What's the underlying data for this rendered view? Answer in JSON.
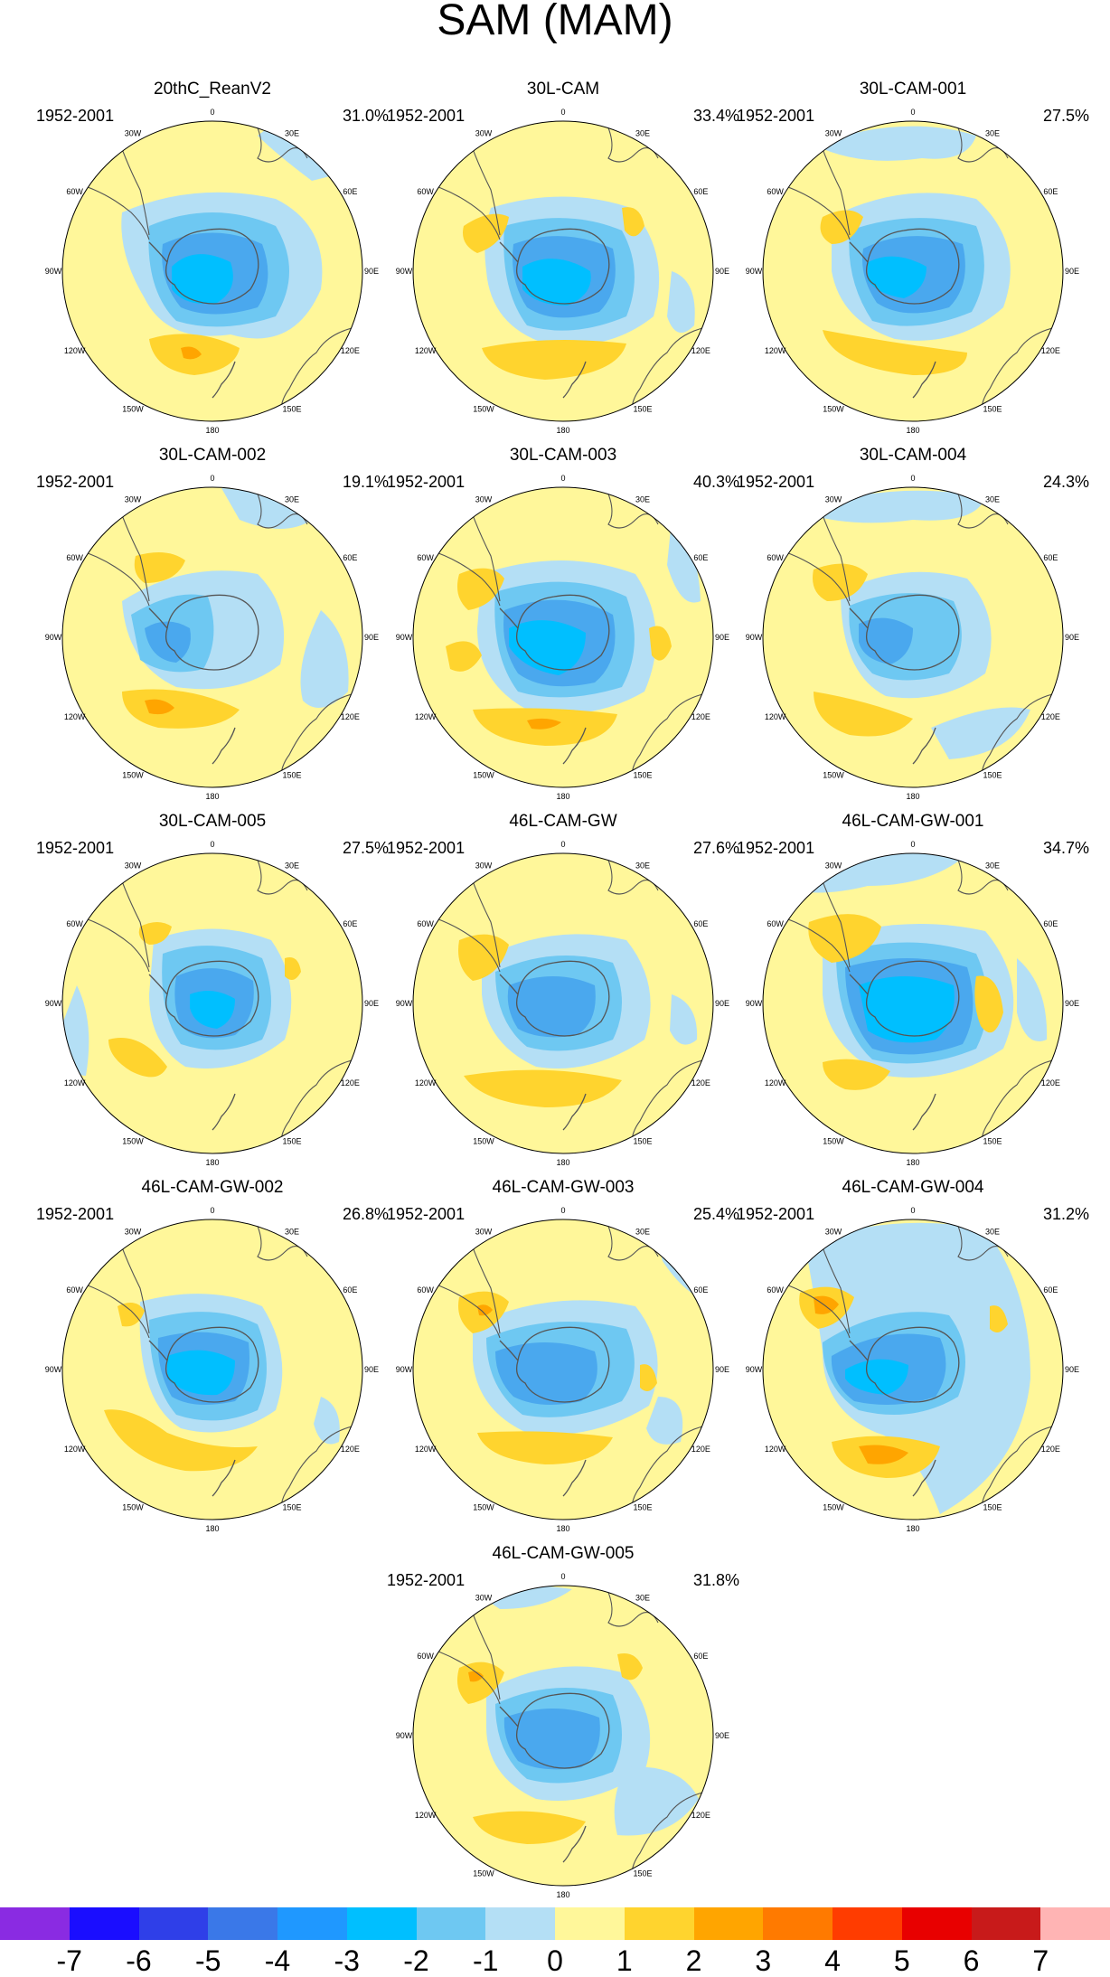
{
  "title": "SAM (MAM)",
  "longitude_labels": [
    "0",
    "30E",
    "60E",
    "90E",
    "120E",
    "150E",
    "180",
    "150W",
    "120W",
    "90W",
    "60W",
    "30W"
  ],
  "panels": [
    {
      "title": "20thC_ReanV2",
      "years": "1952-2001",
      "percent": "31.0%"
    },
    {
      "title": "30L-CAM",
      "years": "1952-2001",
      "percent": "33.4%"
    },
    {
      "title": "30L-CAM-001",
      "years": "1952-2001",
      "percent": "27.5%"
    },
    {
      "title": "30L-CAM-002",
      "years": "1952-2001",
      "percent": "19.1%"
    },
    {
      "title": "30L-CAM-003",
      "years": "1952-2001",
      "percent": "40.3%"
    },
    {
      "title": "30L-CAM-004",
      "years": "1952-2001",
      "percent": "24.3%"
    },
    {
      "title": "30L-CAM-005",
      "years": "1952-2001",
      "percent": "27.5%"
    },
    {
      "title": "46L-CAM-GW",
      "years": "1952-2001",
      "percent": "27.6%"
    },
    {
      "title": "46L-CAM-GW-001",
      "years": "1952-2001",
      "percent": "34.7%"
    },
    {
      "title": "46L-CAM-GW-002",
      "years": "1952-2001",
      "percent": "26.8%"
    },
    {
      "title": "46L-CAM-GW-003",
      "years": "1952-2001",
      "percent": "25.4%"
    },
    {
      "title": "46L-CAM-GW-004",
      "years": "1952-2001",
      "percent": "31.2%"
    },
    {
      "title": "46L-CAM-GW-005",
      "years": "1952-2001",
      "percent": "31.8%"
    }
  ],
  "colorbar": {
    "labels": [
      "-7",
      "-6",
      "-5",
      "-4",
      "-3",
      "-2",
      "-1",
      "0",
      "1",
      "2",
      "3",
      "4",
      "5",
      "6",
      "7"
    ],
    "colors": [
      "#8a2be2",
      "#1a0dff",
      "#2f3fe8",
      "#3a78e8",
      "#1f98ff",
      "#00bfff",
      "#6ec8f2",
      "#b4dff5",
      "#fff79a",
      "#ffd42e",
      "#ffa500",
      "#ff7a00",
      "#ff3c00",
      "#e80000",
      "#c81a1a",
      "#ffb4b4"
    ]
  },
  "palette": {
    "ocean": "#fff79a",
    "neg1": "#b4dff5",
    "neg2": "#6ec8f2",
    "neg3": "#4aa8ee",
    "neg4": "#00bfff",
    "pos1": "#ffd42e",
    "pos2": "#ffa500",
    "coast": "#555555"
  }
}
